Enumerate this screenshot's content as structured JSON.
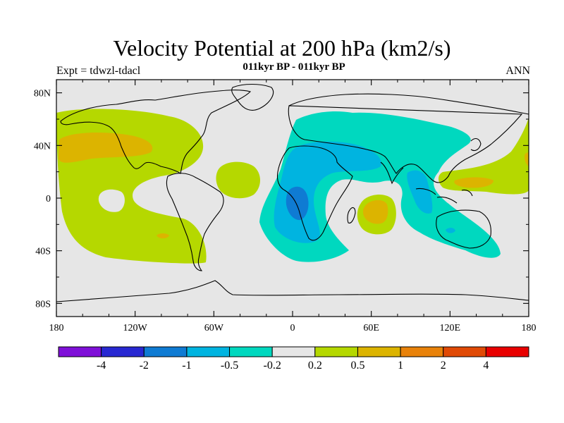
{
  "title": "Velocity Potential at 200 hPa (km2/s)",
  "subtitle": "011kyr BP - 011kyr BP",
  "left_label": "Expt = tdwzl-tdacl",
  "right_label": "ANN",
  "axes": {
    "lon_ticks": [
      "180",
      "120W",
      "60W",
      "0",
      "60E",
      "120E",
      "180"
    ],
    "lat_ticks": [
      "80N",
      "40N",
      "0",
      "40S",
      "80S"
    ]
  },
  "colorbar": {
    "colors": [
      "#7f10d8",
      "#2828d2",
      "#0f7bd3",
      "#00b4e0",
      "#00d8bf",
      "#e6e6e6",
      "#b5d800",
      "#dcb400",
      "#e8820a",
      "#e04a06",
      "#e80000"
    ],
    "labels": [
      "-4",
      "-2",
      "-1",
      "-0.5",
      "-0.2",
      "0.2",
      "0.5",
      "1",
      "2",
      "4"
    ]
  },
  "field_colors": {
    "neutral": "#e6e6e6",
    "light_positive": "#b5d800",
    "medium_positive": "#dcb400",
    "light_negative": "#00d8bf",
    "medium_negative": "#00b4e0",
    "strong_negative": "#0f7bd3",
    "coastline": "#000000"
  }
}
